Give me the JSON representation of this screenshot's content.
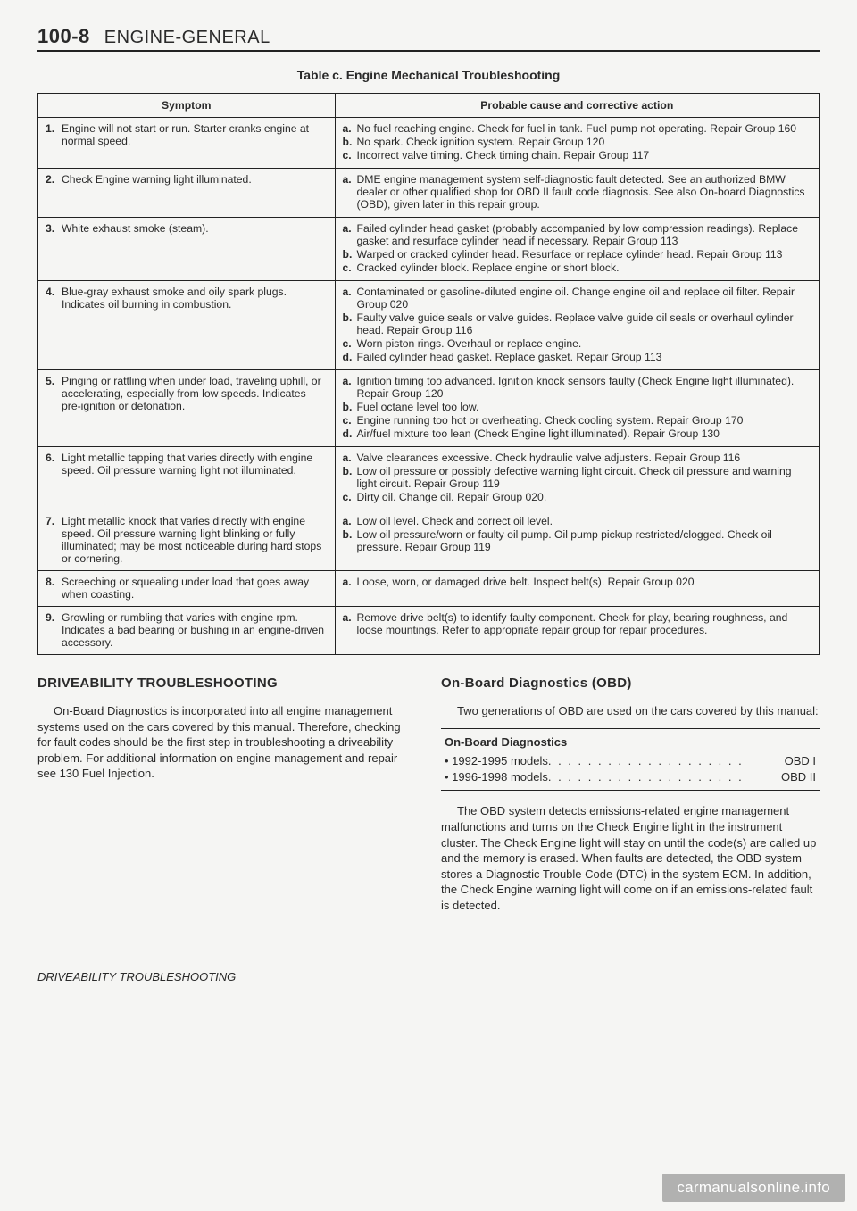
{
  "header": {
    "page_number": "100-8",
    "section_title": "ENGINE-GENERAL"
  },
  "table": {
    "caption": "Table c. Engine Mechanical Troubleshooting",
    "col_symptom": "Symptom",
    "col_cause": "Probable cause and corrective action",
    "rows": [
      {
        "num": "1.",
        "symptom": "Engine will not start or run. Starter cranks engine at normal speed.",
        "causes": [
          {
            "l": "a.",
            "t": "No fuel reaching engine. Check for fuel in tank. Fuel pump not operating. Repair Group 160"
          },
          {
            "l": "b.",
            "t": "No spark. Check ignition system. Repair Group 120"
          },
          {
            "l": "c.",
            "t": "Incorrect valve timing. Check timing chain. Repair Group 117"
          }
        ]
      },
      {
        "num": "2.",
        "symptom": "Check Engine warning light illuminated.",
        "causes": [
          {
            "l": "a.",
            "t": "DME engine management system self-diagnostic fault detected. See an authorized BMW dealer or other qualified shop for OBD II fault code diagnosis. See also On-board Diagnostics (OBD), given later in this repair group."
          }
        ]
      },
      {
        "num": "3.",
        "symptom": "White exhaust smoke (steam).",
        "causes": [
          {
            "l": "a.",
            "t": "Failed cylinder head gasket (probably accompanied by low compression readings). Replace gasket and resurface cylinder head if necessary. Repair Group 113"
          },
          {
            "l": "b.",
            "t": "Warped or cracked cylinder head. Resurface or replace cylinder head. Repair Group 113"
          },
          {
            "l": "c.",
            "t": "Cracked cylinder block. Replace engine or short block."
          }
        ]
      },
      {
        "num": "4.",
        "symptom": "Blue-gray exhaust smoke and oily spark plugs. Indicates oil burning in combustion.",
        "causes": [
          {
            "l": "a.",
            "t": "Contaminated or gasoline-diluted engine oil. Change engine oil and replace oil filter. Repair Group 020"
          },
          {
            "l": "b.",
            "t": "Faulty valve guide seals or valve guides. Replace valve guide oil seals or overhaul cylinder head. Repair Group 116"
          },
          {
            "l": "c.",
            "t": "Worn piston rings. Overhaul or replace engine."
          },
          {
            "l": "d.",
            "t": "Failed cylinder head gasket. Replace gasket. Repair Group 113"
          }
        ]
      },
      {
        "num": "5.",
        "symptom": "Pinging or rattling when under load, traveling uphill, or accelerating, especially from low speeds. Indicates pre-ignition or detonation.",
        "causes": [
          {
            "l": "a.",
            "t": "Ignition timing too advanced. Ignition knock sensors faulty (Check Engine light illuminated). Repair Group 120"
          },
          {
            "l": "b.",
            "t": "Fuel octane level too low."
          },
          {
            "l": "c.",
            "t": "Engine running too hot or overheating. Check cooling system. Repair Group 170"
          },
          {
            "l": "d.",
            "t": "Air/fuel mixture too lean (Check Engine light illuminated). Repair Group 130"
          }
        ]
      },
      {
        "num": "6.",
        "symptom": "Light metallic tapping that varies directly with engine speed. Oil pressure warning light not illuminated.",
        "causes": [
          {
            "l": "a.",
            "t": "Valve clearances excessive. Check hydraulic valve adjusters. Repair Group 116"
          },
          {
            "l": "b.",
            "t": "Low oil pressure or possibly defective warning light circuit. Check oil pressure and warning light circuit. Repair Group 119"
          },
          {
            "l": "c.",
            "t": "Dirty oil. Change oil. Repair Group 020."
          }
        ]
      },
      {
        "num": "7.",
        "symptom": "Light metallic knock that varies directly with engine speed. Oil pressure warning light blinking or fully illuminated; may be most noticeable during hard stops or cornering.",
        "causes": [
          {
            "l": "a.",
            "t": "Low oil level. Check and correct oil level."
          },
          {
            "l": "b.",
            "t": "Low oil pressure/worn or faulty oil pump. Oil pump pickup restricted/clogged. Check oil pressure. Repair Group 119"
          }
        ]
      },
      {
        "num": "8.",
        "symptom": "Screeching or squealing under load that goes away when coasting.",
        "causes": [
          {
            "l": "a.",
            "t": "Loose, worn, or damaged drive belt. Inspect belt(s). Repair Group 020"
          }
        ]
      },
      {
        "num": "9.",
        "symptom": "Growling or rumbling that varies with engine rpm. Indicates a bad bearing or bushing in an engine-driven accessory.",
        "causes": [
          {
            "l": "a.",
            "t": "Remove drive belt(s) to identify faulty component. Check for play, bearing roughness, and loose mountings. Refer to appropriate repair group for repair procedures."
          }
        ]
      }
    ]
  },
  "left_col": {
    "heading": "DRIVEABILITY TROUBLESHOOTING",
    "para": "On-Board Diagnostics is incorporated into all engine management systems used on the cars covered by this manual. Therefore, checking for fault codes should be the first step in troubleshooting a driveability problem. For additional information on engine management and repair see 130 Fuel Injection.",
    "footer": "DRIVEABILITY TROUBLESHOOTING"
  },
  "right_col": {
    "heading": "On-Board Diagnostics (OBD)",
    "para1": "Two generations of OBD are used on the cars covered by this manual:",
    "box_title": "On-Board Diagnostics",
    "box_items": [
      {
        "label": "• 1992-1995 models",
        "value": "OBD I"
      },
      {
        "label": "• 1996-1998 models",
        "value": "OBD II"
      }
    ],
    "para2": "The OBD system detects emissions-related engine management malfunctions and turns on the Check Engine light in the instrument cluster. The Check Engine light will stay on until the code(s) are called up and the memory is erased. When faults are detected, the OBD system stores a Diagnostic Trouble Code (DTC) in the system ECM. In addition, the Check Engine warning light will come on if an emissions-related fault is detected."
  },
  "watermark": "carmanualsonline.info"
}
